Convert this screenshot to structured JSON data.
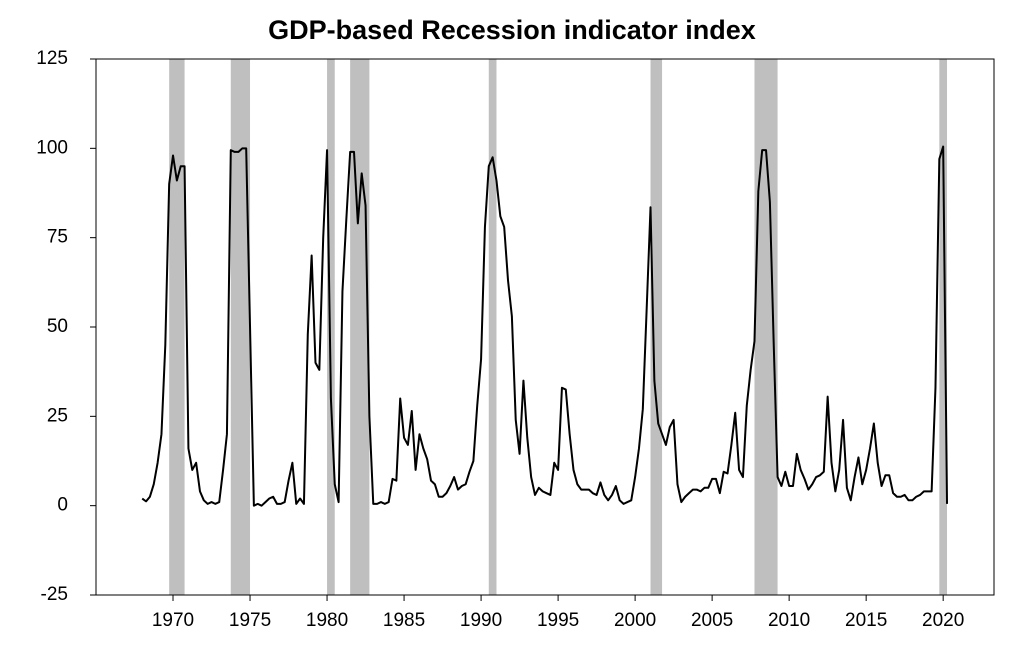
{
  "chart_data": {
    "type": "line",
    "title": "GDP-based Recession indicator index",
    "color": "#000000",
    "shade_color": "#bfbfbf",
    "xlim": [
      1965,
      2023.3
    ],
    "ylim": [
      -25,
      125
    ],
    "xticks": [
      1970,
      1975,
      1980,
      1985,
      1990,
      1995,
      2000,
      2005,
      2010,
      2015,
      2020
    ],
    "yticks": [
      -25,
      0,
      25,
      50,
      75,
      100,
      125
    ],
    "shaded_periods": [
      [
        1969.75,
        1970.75
      ],
      [
        1973.75,
        1975.0
      ],
      [
        1980.0,
        1980.5
      ],
      [
        1981.5,
        1982.75
      ],
      [
        1990.5,
        1991.0
      ],
      [
        2001.0,
        2001.75
      ],
      [
        2007.75,
        2009.25
      ],
      [
        2019.75,
        2020.25
      ]
    ],
    "x": [
      1968.0,
      1968.25,
      1968.5,
      1968.75,
      1969.0,
      1969.25,
      1969.5,
      1969.75,
      1970.0,
      1970.25,
      1970.5,
      1970.75,
      1971.0,
      1971.25,
      1971.5,
      1971.75,
      1972.0,
      1972.25,
      1972.5,
      1972.75,
      1973.0,
      1973.25,
      1973.5,
      1973.75,
      1974.0,
      1974.25,
      1974.5,
      1974.75,
      1975.0,
      1975.25,
      1975.5,
      1975.75,
      1976.0,
      1976.25,
      1976.5,
      1976.75,
      1977.0,
      1977.25,
      1977.5,
      1977.75,
      1978.0,
      1978.25,
      1978.5,
      1978.75,
      1979.0,
      1979.25,
      1979.5,
      1979.75,
      1980.0,
      1980.25,
      1980.5,
      1980.75,
      1981.0,
      1981.25,
      1981.5,
      1981.75,
      1982.0,
      1982.25,
      1982.5,
      1982.75,
      1983.0,
      1983.25,
      1983.5,
      1983.75,
      1984.0,
      1984.25,
      1984.5,
      1984.75,
      1985.0,
      1985.25,
      1985.5,
      1985.75,
      1986.0,
      1986.25,
      1986.5,
      1986.75,
      1987.0,
      1987.25,
      1987.5,
      1987.75,
      1988.0,
      1988.25,
      1988.5,
      1988.75,
      1989.0,
      1989.25,
      1989.5,
      1989.75,
      1990.0,
      1990.25,
      1990.5,
      1990.75,
      1991.0,
      1991.25,
      1991.5,
      1991.75,
      1992.0,
      1992.25,
      1992.5,
      1992.75,
      1993.0,
      1993.25,
      1993.5,
      1993.75,
      1994.0,
      1994.25,
      1994.5,
      1994.75,
      1995.0,
      1995.25,
      1995.5,
      1995.75,
      1996.0,
      1996.25,
      1996.5,
      1996.75,
      1997.0,
      1997.25,
      1997.5,
      1997.75,
      1998.0,
      1998.25,
      1998.5,
      1998.75,
      1999.0,
      1999.25,
      1999.5,
      1999.75,
      2000.0,
      2000.25,
      2000.5,
      2000.75,
      2001.0,
      2001.25,
      2001.5,
      2001.75,
      2002.0,
      2002.25,
      2002.5,
      2002.75,
      2003.0,
      2003.25,
      2003.5,
      2003.75,
      2004.0,
      2004.25,
      2004.5,
      2004.75,
      2005.0,
      2005.25,
      2005.5,
      2005.75,
      2006.0,
      2006.25,
      2006.5,
      2006.75,
      2007.0,
      2007.25,
      2007.5,
      2007.75,
      2008.0,
      2008.25,
      2008.5,
      2008.75,
      2009.0,
      2009.25,
      2009.5,
      2009.75,
      2010.0,
      2010.25,
      2010.5,
      2010.75,
      2011.0,
      2011.25,
      2011.5,
      2011.75,
      2012.0,
      2012.25,
      2012.5,
      2012.75,
      2013.0,
      2013.25,
      2013.5,
      2013.75,
      2014.0,
      2014.25,
      2014.5,
      2014.75,
      2015.0,
      2015.25,
      2015.5,
      2015.75,
      2016.0,
      2016.25,
      2016.5,
      2016.75,
      2017.0,
      2017.25,
      2017.5,
      2017.75,
      2018.0,
      2018.25,
      2018.5,
      2018.75,
      2019.0,
      2019.25,
      2019.5,
      2019.75,
      2020.0,
      2020.25
    ],
    "values": [
      2,
      1.2,
      2.5,
      6,
      12,
      20,
      45,
      90,
      98,
      91,
      95,
      95,
      16,
      10,
      12,
      4,
      1.5,
      0.5,
      1,
      0.5,
      1,
      10,
      20,
      99.5,
      99,
      99,
      100,
      100,
      50,
      0,
      0.5,
      0,
      1,
      2,
      2.5,
      0.5,
      0.5,
      1,
      7,
      12,
      0.5,
      2,
      0.5,
      48,
      70,
      40,
      38,
      75,
      99.5,
      30,
      6,
      1,
      60,
      80,
      99,
      99,
      79,
      93,
      84,
      25,
      0.5,
      0.5,
      1,
      0.5,
      1,
      7.5,
      7,
      30,
      19,
      17,
      26.5,
      10,
      20,
      16,
      13,
      7,
      6,
      2.5,
      2.5,
      3.5,
      5.5,
      8,
      4.5,
      5.5,
      6,
      9.5,
      12.5,
      28,
      41,
      78,
      95,
      97.5,
      91,
      81,
      78,
      63,
      53,
      24,
      14.5,
      35,
      19,
      8,
      3,
      5,
      4,
      3.5,
      3,
      12,
      10,
      33,
      32.5,
      20,
      10,
      6,
      4.5,
      4.5,
      4.5,
      3.5,
      3,
      6.5,
      3,
      1.5,
      3,
      5.5,
      1.5,
      0.5,
      1,
      1.5,
      8,
      16,
      27,
      55,
      83.5,
      35,
      23,
      20,
      17,
      22,
      24,
      6,
      1,
      2.5,
      3.5,
      4.5,
      4.5,
      4,
      5,
      5,
      7.5,
      7.5,
      3.5,
      9.5,
      9,
      17,
      26,
      10,
      8,
      28,
      38,
      46,
      88,
      99.5,
      99.5,
      85,
      45,
      8,
      5.5,
      9.5,
      5.5,
      5.5,
      14.5,
      10,
      7.5,
      4.5,
      6,
      8,
      8.5,
      9.5,
      30.5,
      12,
      4,
      10,
      24,
      5,
      1.5,
      8,
      13.5,
      6,
      10,
      16,
      23,
      12,
      5.5,
      8.5,
      8.5,
      3.5,
      2.5,
      2.5,
      3,
      1.5,
      1.5,
      2.5,
      3,
      4,
      4,
      4,
      33,
      97,
      100.5,
      0.5
    ]
  }
}
